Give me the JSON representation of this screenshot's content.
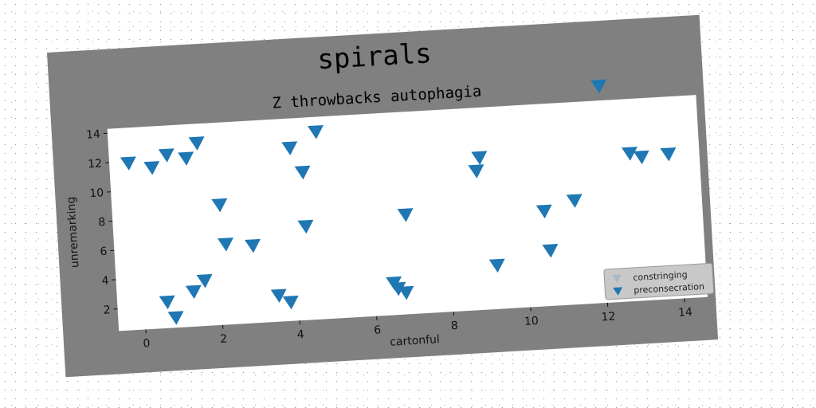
{
  "chart_data": {
    "type": "scatter",
    "title": "spirals",
    "subtitle": "Z throwbacks autophagia",
    "xlabel": "cartonful",
    "ylabel": "unremarking",
    "xlim": [
      -0.7,
      14.6
    ],
    "ylim": [
      0.5,
      14.3
    ],
    "x_ticks": [
      0,
      2,
      4,
      6,
      8,
      10,
      12,
      14
    ],
    "y_ticks": [
      2,
      4,
      6,
      8,
      10,
      12,
      14
    ],
    "grid": false,
    "legend_position": "bottom-right",
    "marker": "triangle-down",
    "series": [
      {
        "name": "constringing",
        "color": "#aab9c7",
        "points": []
      },
      {
        "name": "preconsecration",
        "color": "#1f77b4",
        "points": [
          [
            -0.2,
            11.9
          ],
          [
            0.4,
            11.5
          ],
          [
            0.8,
            12.3
          ],
          [
            1.3,
            12.0
          ],
          [
            1.6,
            13.0
          ],
          [
            0.6,
            2.3
          ],
          [
            0.8,
            1.2
          ],
          [
            1.3,
            2.9
          ],
          [
            1.6,
            3.6
          ],
          [
            2.1,
            8.7
          ],
          [
            2.2,
            6.0
          ],
          [
            2.9,
            5.8
          ],
          [
            3.5,
            2.3
          ],
          [
            3.8,
            1.8
          ],
          [
            4.0,
            12.3
          ],
          [
            4.3,
            10.6
          ],
          [
            4.3,
            6.9
          ],
          [
            4.7,
            13.3
          ],
          [
            6.5,
            2.7
          ],
          [
            6.6,
            2.3
          ],
          [
            6.8,
            2.0
          ],
          [
            6.9,
            7.3
          ],
          [
            8.8,
            10.0
          ],
          [
            8.9,
            10.9
          ],
          [
            9.2,
            3.5
          ],
          [
            10.5,
            7.0
          ],
          [
            10.6,
            4.3
          ],
          [
            11.3,
            7.6
          ],
          [
            12.1,
            15.3
          ],
          [
            12.8,
            10.6
          ],
          [
            13.1,
            10.3
          ],
          [
            13.8,
            10.4
          ]
        ]
      }
    ]
  }
}
